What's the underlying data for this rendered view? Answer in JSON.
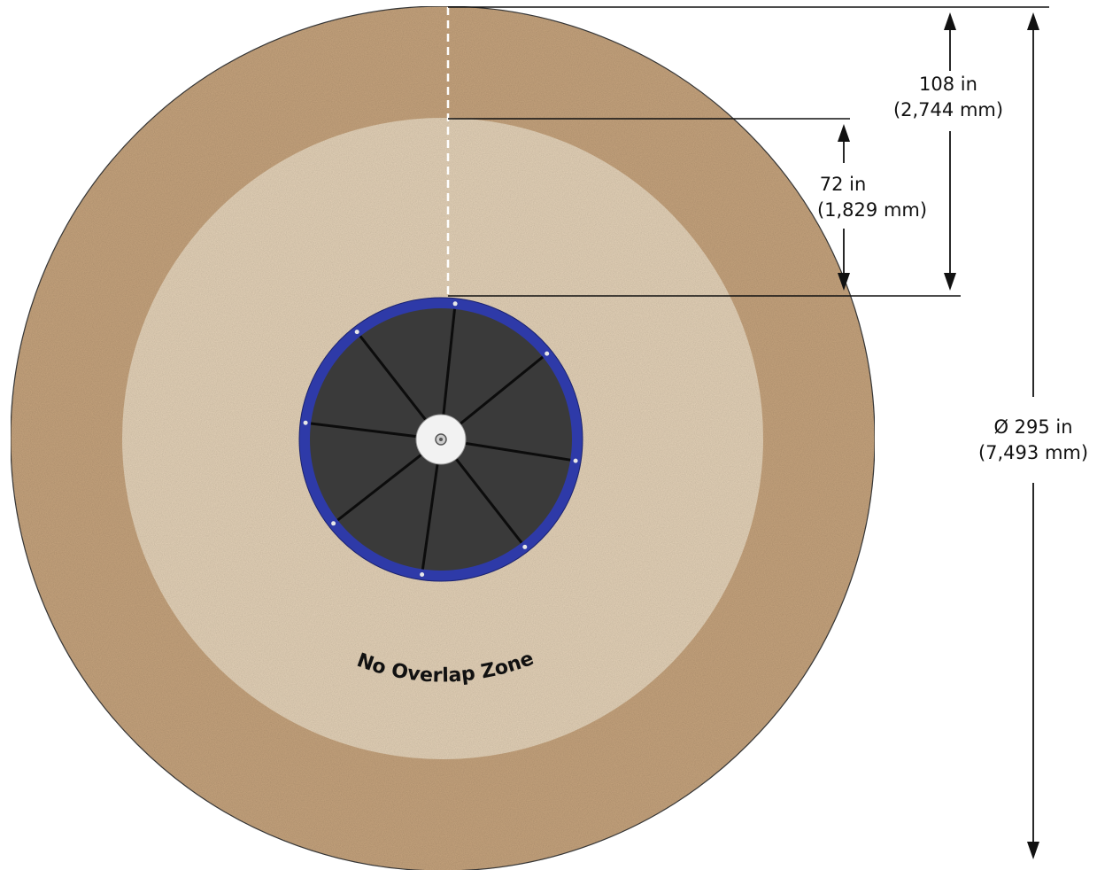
{
  "colors": {
    "outer_zone": "#c4a27c",
    "inner_zone": "#e2d0b6",
    "equipment_ring": "#2e3aa8",
    "equipment_surface": "#3a3a3a",
    "hub": "#f2f2f2",
    "dimension_line": "#111111"
  },
  "dimensions": {
    "outer_offset": {
      "value": "108 in",
      "metric": "(2,744 mm)"
    },
    "inner_offset": {
      "value": "72 in",
      "metric": "(1,829 mm)"
    },
    "diameter": {
      "value": "Ø 295 in",
      "metric": "(7,493 mm)"
    }
  },
  "zone_label": "No Overlap Zone",
  "icons": {
    "hub": "hub-icon",
    "arrow": "arrowhead-icon"
  }
}
